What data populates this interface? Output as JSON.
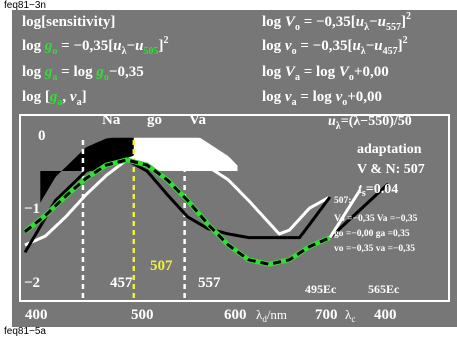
{
  "captions": {
    "top": "feq81−3n",
    "bottom": "feq81−5a"
  },
  "colors": {
    "background": "#777777",
    "frame": "#ffffff",
    "green": "#33dd33",
    "yellow": "#eeee44",
    "black": "#000000",
    "white": "#ffffff"
  },
  "formulas": {
    "left": [
      {
        "id": "l1",
        "segs": [
          {
            "t": "log[sensitivity]"
          }
        ]
      },
      {
        "id": "l2",
        "segs": [
          {
            "t": "log "
          },
          {
            "t": "g",
            "i": true,
            "c": "green"
          },
          {
            "t": "o",
            "sub": true,
            "c": "green"
          },
          {
            "t": " = −0,35["
          },
          {
            "t": "u",
            "i": true
          },
          {
            "t": "λ",
            "sub": true
          },
          {
            "t": "−"
          },
          {
            "t": "u",
            "i": true
          },
          {
            "t": "505",
            "sub": true,
            "c": "green"
          },
          {
            "t": "]"
          },
          {
            "t": "2",
            "sup": true
          }
        ]
      },
      {
        "id": "l3",
        "segs": [
          {
            "t": "log "
          },
          {
            "t": "g",
            "i": true,
            "c": "green"
          },
          {
            "t": "a",
            "sub": true,
            "c": "green"
          },
          {
            "t": " = log "
          },
          {
            "t": "g",
            "i": true,
            "c": "green"
          },
          {
            "t": "o",
            "sub": true,
            "c": "green"
          },
          {
            "t": "−0,35"
          }
        ]
      },
      {
        "id": "l4",
        "segs": [
          {
            "t": "log ["
          },
          {
            "t": "g",
            "i": true,
            "c": "green"
          },
          {
            "t": "a",
            "sub": true,
            "c": "green"
          },
          {
            "t": ", "
          },
          {
            "t": "v",
            "i": true
          },
          {
            "t": "a",
            "sub": true
          },
          {
            "t": "]"
          }
        ]
      }
    ],
    "right": [
      {
        "id": "r1",
        "segs": [
          {
            "t": "log "
          },
          {
            "t": "V",
            "i": true
          },
          {
            "t": "o",
            "sub": true
          },
          {
            "t": " = −0,35["
          },
          {
            "t": "u",
            "i": true
          },
          {
            "t": "λ",
            "sub": true
          },
          {
            "t": "−"
          },
          {
            "t": "u",
            "i": true
          },
          {
            "t": "557",
            "sub": true
          },
          {
            "t": "]"
          },
          {
            "t": "2",
            "sup": true
          }
        ]
      },
      {
        "id": "r2",
        "segs": [
          {
            "t": "log "
          },
          {
            "t": "v",
            "i": true
          },
          {
            "t": "o",
            "sub": true
          },
          {
            "t": " = −0,35["
          },
          {
            "t": "u",
            "i": true
          },
          {
            "t": "λ",
            "sub": true
          },
          {
            "t": "−"
          },
          {
            "t": "u",
            "i": true
          },
          {
            "t": "457",
            "sub": true
          },
          {
            "t": "]"
          },
          {
            "t": "2",
            "sup": true
          }
        ]
      },
      {
        "id": "r3",
        "segs": [
          {
            "t": "log "
          },
          {
            "t": "V",
            "i": true
          },
          {
            "t": "a",
            "sub": true
          },
          {
            "t": " = log "
          },
          {
            "t": "V",
            "i": true
          },
          {
            "t": "o",
            "sub": true
          },
          {
            "t": "+0,00"
          }
        ]
      },
      {
        "id": "r4",
        "segs": [
          {
            "t": "log "
          },
          {
            "t": "v",
            "i": true
          },
          {
            "t": "a",
            "sub": true
          },
          {
            "t": " = log "
          },
          {
            "t": "v",
            "i": true
          },
          {
            "t": "o",
            "sub": true
          },
          {
            "t": "+0,00"
          }
        ]
      }
    ],
    "u_lambda": [
      {
        "t": "u",
        "i": true
      },
      {
        "t": "λ",
        "sub": true
      },
      {
        "t": "=(λ−550)/50"
      }
    ]
  },
  "adaptation": {
    "title": "adaptation",
    "vn": "V & N: 507",
    "ts": "t",
    "ts_sub": "s",
    "ts_val": "=0.04"
  },
  "info_lines": [
    "507:",
    "Vo =−0,35  Va =−0,35",
    "go =−0,00  ga =0,35",
    "vo =−0,35  va =−0,35"
  ],
  "region_labels": [
    "Na",
    "go",
    "Va"
  ],
  "marker_labels": [
    "457",
    "507",
    "557"
  ],
  "annotations": [
    "495Ec",
    "565Ec"
  ],
  "x_axis": {
    "main_ticks": [
      "400",
      "500",
      "600"
    ],
    "unit_main": "λ",
    "unit_main_sub": "d",
    "unit_main_rest": "/nm",
    "comp_ticks": [
      "700",
      "400"
    ],
    "unit_comp": "λ",
    "unit_comp_sub": "c"
  },
  "chart_data": {
    "type": "line",
    "xlabel": "λd/nm",
    "ylabel": "log[sensitivity]",
    "xlim": [
      400,
      700
    ],
    "ylim": [
      -2.2,
      0.1
    ],
    "yticks": [
      "0",
      "−1",
      "−2"
    ],
    "markers": [
      457,
      507,
      557
    ],
    "series": [
      {
        "name": "white",
        "style": "solid",
        "x": [
          400,
          420,
          440,
          460,
          480,
          500,
          520,
          540,
          560,
          580,
          600,
          620,
          640,
          650,
          660,
          680,
          700
        ],
        "y": [
          -1.5,
          -1.38,
          -1.12,
          -0.82,
          -0.56,
          -0.35,
          -0.24,
          -0.22,
          -0.26,
          -0.44,
          -0.62,
          -0.9,
          -1.2,
          -1.35,
          -1.3,
          -1.0,
          -0.85
        ]
      },
      {
        "name": "black",
        "style": "solid",
        "x": [
          400,
          430,
          460,
          480,
          500,
          520,
          540,
          560,
          580,
          600,
          620,
          650,
          670,
          680,
          700
        ],
        "y": [
          -1.6,
          -0.9,
          -0.5,
          -0.38,
          -0.35,
          -0.5,
          -0.82,
          -1.12,
          -1.28,
          -1.35,
          -1.4,
          -1.4,
          -1.4,
          -1.22,
          -0.85
        ]
      },
      {
        "name": "green",
        "style": "solid",
        "x": [
          400,
          420,
          440,
          460,
          480,
          500,
          520,
          540,
          560,
          580,
          600,
          620,
          640,
          660,
          680,
          700
        ],
        "y": [
          -1.32,
          -1.1,
          -0.84,
          -0.6,
          -0.42,
          -0.35,
          -0.42,
          -0.62,
          -0.9,
          -1.22,
          -1.5,
          -1.7,
          -1.76,
          -1.7,
          -1.52,
          -1.4
        ]
      },
      {
        "name": "black-dashed",
        "style": "dashed",
        "x": [
          400,
          420,
          440,
          460,
          480,
          500,
          520,
          540,
          560,
          580,
          600,
          620,
          640,
          660,
          680,
          700
        ],
        "y": [
          -1.32,
          -1.1,
          -0.84,
          -0.6,
          -0.42,
          -0.35,
          -0.42,
          -0.62,
          -0.9,
          -1.22,
          -1.5,
          -1.7,
          -1.76,
          -1.7,
          -1.52,
          -1.4
        ]
      }
    ],
    "filled_regions": [
      {
        "name": "black-region",
        "x_from": 415,
        "x_to": 507,
        "color": "black"
      },
      {
        "name": "white-region",
        "x_from": 507,
        "x_to": 610,
        "color": "white"
      }
    ]
  }
}
